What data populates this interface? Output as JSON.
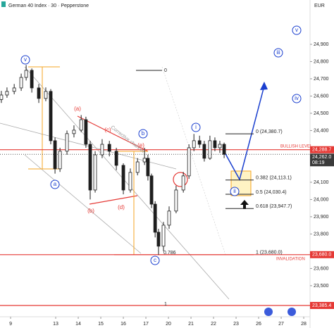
{
  "chart_data": {
    "type": "candlestick",
    "title": "German 40 Index · 30 · Pepperstone",
    "currency": "EUR",
    "candle_color": "#1e1e1e",
    "xlim": [
      -0.47,
      13.28
    ],
    "ylim": [
      23320,
      25157
    ],
    "xticks": [
      {
        "value": 0,
        "label": "9"
      },
      {
        "value": 2,
        "label": "13"
      },
      {
        "value": 3,
        "label": "14"
      },
      {
        "value": 4,
        "label": "15"
      },
      {
        "value": 5,
        "label": "16"
      },
      {
        "value": 6,
        "label": "17"
      },
      {
        "value": 7,
        "label": "20"
      },
      {
        "value": 8,
        "label": "21"
      },
      {
        "value": 9,
        "label": "22"
      },
      {
        "value": 10,
        "label": "23"
      },
      {
        "value": 11,
        "label": "26"
      },
      {
        "value": 12,
        "label": "27"
      },
      {
        "value": 13,
        "label": "28"
      }
    ],
    "yticks": [
      {
        "value": 23500,
        "label": "23,500"
      },
      {
        "value": 23600,
        "label": "23,600"
      },
      {
        "value": 23800,
        "label": "23,800"
      },
      {
        "value": 23900,
        "label": "23,900"
      },
      {
        "value": 24000,
        "label": "24,000"
      },
      {
        "value": 24100,
        "label": "24,100"
      },
      {
        "value": 24400,
        "label": "24,400"
      },
      {
        "value": 24500,
        "label": "24,500"
      },
      {
        "value": 24600,
        "label": "24,600"
      },
      {
        "value": 24700,
        "label": "24,700"
      },
      {
        "value": 24800,
        "label": "24,800"
      },
      {
        "value": 24900,
        "label": "24,900"
      }
    ],
    "x": [
      -0.41,
      -0.16,
      0.16,
      0.47,
      0.69,
      0.94,
      1.25,
      1.56,
      1.78,
      1.97,
      2.19,
      2.5,
      2.81,
      3.13,
      3.34,
      3.53,
      3.75,
      4.06,
      4.38,
      4.69,
      5.0,
      5.31,
      5.63,
      5.94,
      6.09,
      6.25,
      6.41,
      6.56,
      6.78,
      7.03,
      7.34,
      7.66,
      7.91,
      8.13,
      8.38,
      8.59,
      8.84,
      9.06,
      9.28,
      9.47
    ],
    "open": [
      24580,
      24606,
      24627,
      24647,
      24708,
      24749,
      24647,
      24586,
      24627,
      24341,
      24178,
      24280,
      24382,
      24402,
      24463,
      24320,
      24055,
      24259,
      24320,
      24280,
      24198,
      24055,
      24157,
      24218,
      24239,
      24137,
      23973,
      23810,
      23729,
      23851,
      23933,
      24055,
      24137,
      24300,
      24341,
      24320,
      24239,
      24341,
      24300,
      24320
    ],
    "high": [
      24630,
      24650,
      24670,
      24730,
      24780,
      24760,
      24670,
      24650,
      24640,
      24360,
      24300,
      24400,
      24430,
      24490,
      24480,
      24340,
      24280,
      24350,
      24340,
      24300,
      24210,
      24180,
      24240,
      24300,
      24260,
      24150,
      23990,
      23830,
      23870,
      23960,
      24080,
      24160,
      24320,
      24380,
      24370,
      24340,
      24370,
      24360,
      24340,
      24330
    ],
    "low": [
      24560,
      24590,
      24610,
      24630,
      24690,
      24620,
      24560,
      24570,
      24320,
      24150,
      24160,
      24260,
      24360,
      24390,
      24300,
      24000,
      24040,
      24240,
      24250,
      24170,
      24030,
      24040,
      24140,
      24200,
      24110,
      23950,
      23780,
      23680,
      23700,
      23830,
      23920,
      24040,
      24120,
      24280,
      24300,
      24220,
      24230,
      24280,
      24270,
      24240
    ],
    "close": [
      24606,
      24627,
      24647,
      24708,
      24749,
      24647,
      24586,
      24627,
      24341,
      24178,
      24280,
      24382,
      24402,
      24463,
      24320,
      24055,
      24259,
      24320,
      24280,
      24198,
      24055,
      24157,
      24218,
      24239,
      24137,
      23973,
      23810,
      23729,
      23851,
      23933,
      24055,
      24137,
      24300,
      24341,
      24320,
      24239,
      24341,
      24300,
      24320,
      24262
    ],
    "price_tags": [
      {
        "value": 24288.7,
        "label": "24,288.7",
        "color": "#e53935"
      },
      {
        "value": 24262.0,
        "label": "24,262.0",
        "color": "#3a3a3a"
      },
      {
        "value": 23680.0,
        "label": "23,680.0",
        "color": "#e53935"
      },
      {
        "value": 23385.4,
        "label": "23,385.4",
        "color": "#e53935"
      }
    ],
    "countdown": "08:19",
    "fib_levels": [
      {
        "value": 24380.7,
        "label": "0 (24,380.7)"
      },
      {
        "value": 24113.1,
        "label": "0.382 (24,113.1)"
      },
      {
        "value": 24030.4,
        "label": "0.5 (24,030.4)"
      },
      {
        "value": 23947.7,
        "label": "0.618 (23,947.7)"
      },
      {
        "value": 23680.0,
        "label": "1 (23,680.0)"
      }
    ],
    "fib_small": [
      "0",
      "0.786",
      "1"
    ],
    "wave_labels": [
      "v",
      "a",
      "b",
      "c",
      "i",
      "ii",
      "iii",
      "iv",
      "v"
    ],
    "corrective_labels": [
      "(a)",
      "(b)",
      "(c)",
      "(d)",
      "(e)"
    ],
    "notes": [
      "Corrective channel",
      "BULLISH LEVEL",
      "INVALIDATION"
    ]
  }
}
